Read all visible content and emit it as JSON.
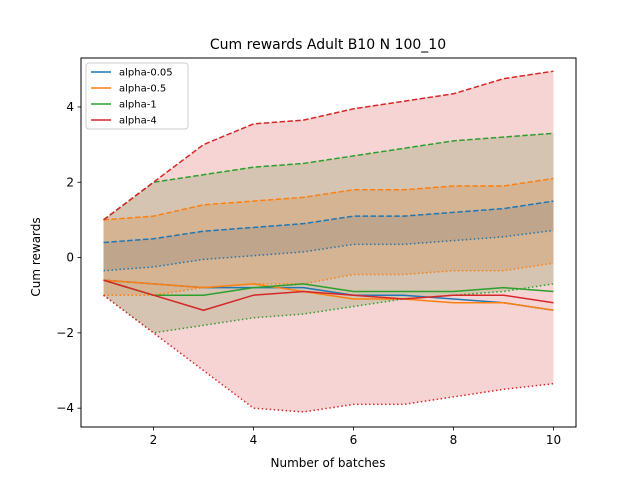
{
  "chart_data": {
    "type": "line",
    "title": "Cum rewards Adult B10 N 100_10",
    "xlabel": "Number of batches",
    "ylabel": "Cum rewards",
    "xlim": [
      0.55,
      10.45
    ],
    "ylim": [
      -4.5,
      5.3
    ],
    "xticks": [
      2,
      4,
      6,
      8,
      10
    ],
    "yticks": [
      -4,
      -2,
      0,
      2,
      4
    ],
    "grid": false,
    "legend_position": "top-left",
    "x": [
      1,
      2,
      3,
      4,
      5,
      6,
      7,
      8,
      9,
      10
    ],
    "series": [
      {
        "name": "alpha-0.05",
        "color": "#1f77b4",
        "mean": [
          -0.6,
          -0.7,
          -0.8,
          -0.8,
          -0.8,
          -1.0,
          -1.0,
          -1.1,
          -1.2,
          -1.4
        ],
        "upper": [
          0.4,
          0.5,
          0.7,
          0.8,
          0.9,
          1.1,
          1.1,
          1.2,
          1.3,
          1.5
        ],
        "lower": [
          -0.35,
          -0.25,
          -0.05,
          0.05,
          0.15,
          0.35,
          0.35,
          0.45,
          0.55,
          0.72
        ]
      },
      {
        "name": "alpha-0.5",
        "color": "#ff7f0e",
        "mean": [
          -0.6,
          -0.7,
          -0.8,
          -0.7,
          -0.9,
          -1.1,
          -1.1,
          -1.2,
          -1.2,
          -1.4
        ],
        "upper": [
          1.0,
          1.1,
          1.4,
          1.5,
          1.6,
          1.8,
          1.8,
          1.9,
          1.9,
          2.1
        ],
        "lower": [
          -1.0,
          -1.0,
          -0.8,
          -0.7,
          -0.7,
          -0.45,
          -0.45,
          -0.35,
          -0.35,
          -0.15
        ]
      },
      {
        "name": "alpha-1",
        "color": "#2ca02c",
        "mean": [
          -0.6,
          -1.0,
          -1.0,
          -0.8,
          -0.7,
          -0.9,
          -0.9,
          -0.9,
          -0.8,
          -0.9
        ],
        "upper": [
          1.0,
          2.0,
          2.2,
          2.4,
          2.5,
          2.7,
          2.9,
          3.1,
          3.2,
          3.3
        ],
        "lower": [
          -1.0,
          -2.0,
          -1.8,
          -1.6,
          -1.5,
          -1.3,
          -1.1,
          -1.0,
          -0.9,
          -0.7
        ]
      },
      {
        "name": "alpha-4",
        "color": "#d62728",
        "mean": [
          -0.6,
          -1.0,
          -1.4,
          -1.0,
          -0.9,
          -1.0,
          -1.1,
          -1.0,
          -1.0,
          -1.2
        ],
        "upper": [
          1.0,
          2.0,
          3.0,
          3.55,
          3.65,
          3.95,
          4.15,
          4.35,
          4.75,
          4.95
        ],
        "lower": [
          -1.0,
          -2.0,
          -3.0,
          -4.0,
          -4.1,
          -3.9,
          -3.9,
          -3.7,
          -3.5,
          -3.35
        ]
      }
    ]
  }
}
